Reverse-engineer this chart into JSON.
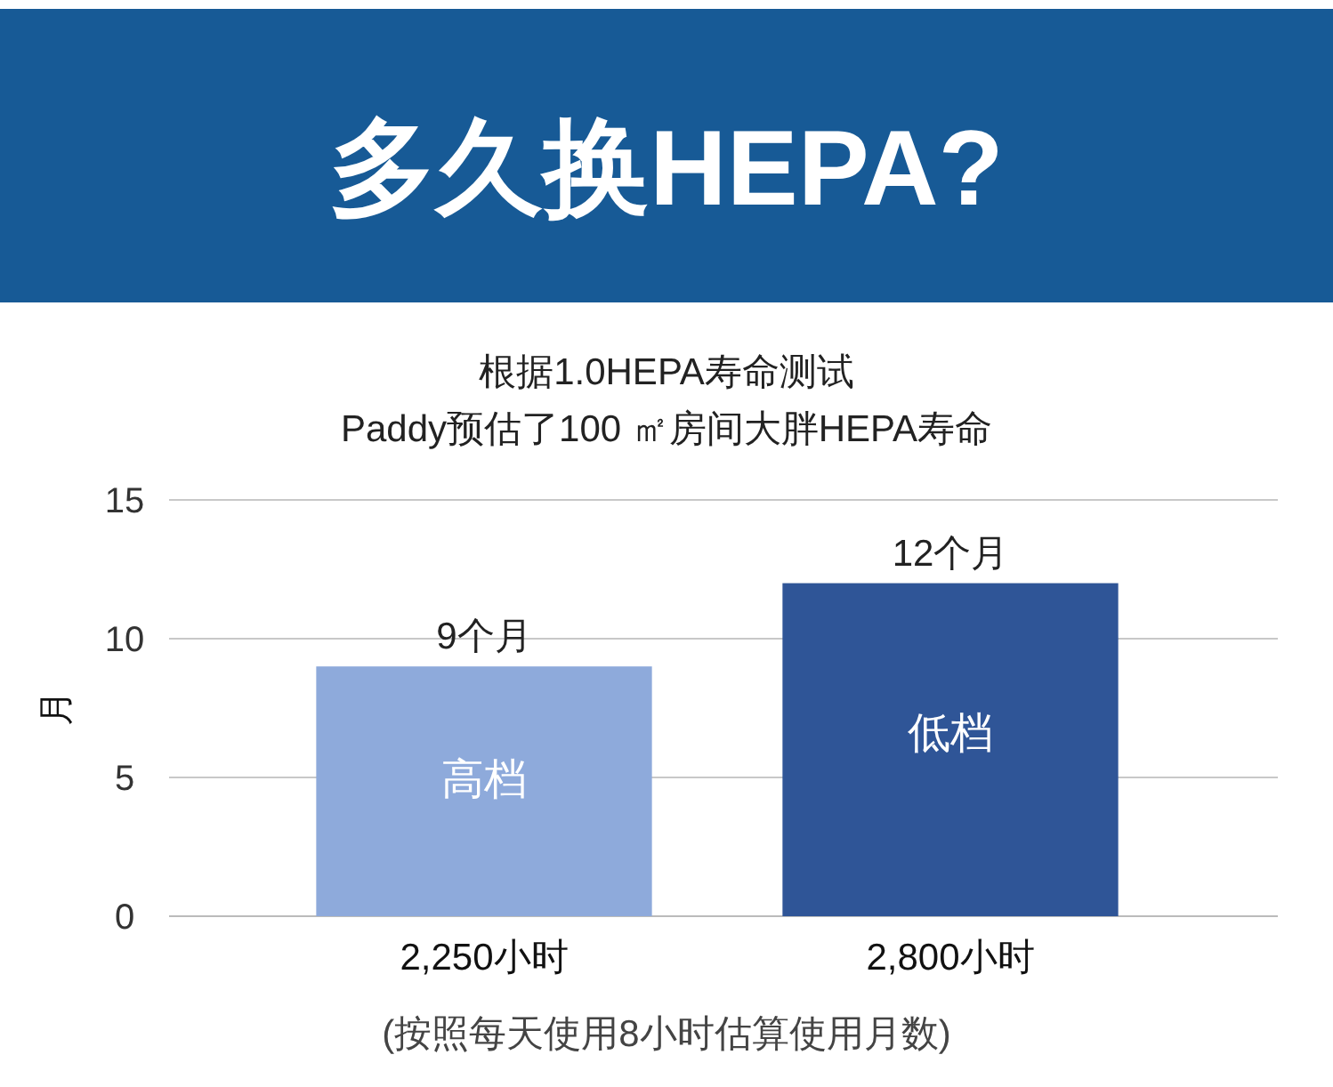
{
  "chart_data": {
    "type": "bar",
    "title": "多久换HEPA?",
    "subtitle": "根据1.0HEPA寿命测试\nPaddy预估了100 ㎡房间大胖HEPA寿命",
    "ylabel": "月",
    "categories": [
      "2,250小时",
      "2,800小时"
    ],
    "values": [
      9,
      12
    ],
    "colors": [
      "#8eaadb",
      "#2f5597"
    ],
    "value_labels": [
      "9个月",
      "12个月"
    ],
    "ylim": [
      0,
      15
    ],
    "yticks": [
      0,
      5,
      10,
      15
    ],
    "grid": "y",
    "annotations": [
      "高档",
      "低档",
      "(按照每天使用8小时估算使用月数)"
    ]
  }
}
